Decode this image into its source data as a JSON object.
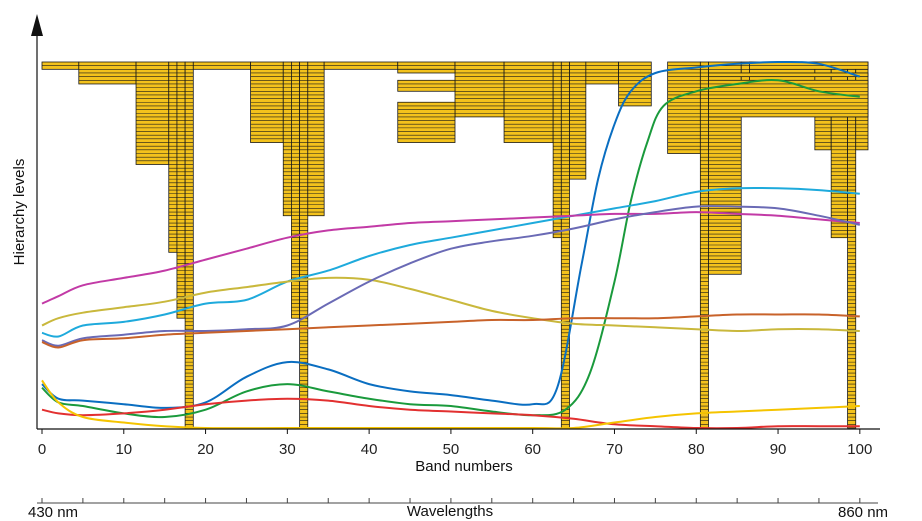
{
  "chart_data": {
    "type": "line",
    "ylabel": "Hierarchy levels",
    "xlabel": "Band numbers",
    "xlim": [
      0,
      101
    ],
    "x_ticks": [
      0,
      10,
      20,
      30,
      40,
      50,
      60,
      70,
      80,
      90,
      100
    ],
    "y_relative": [
      0,
      1
    ],
    "grid": false,
    "legend": "none",
    "wavelength_axis": {
      "label": "Wavelengths",
      "start_label": "430 nm",
      "end_label": "860 nm"
    },
    "hierarchy_levels": {
      "fill": "#f3c21c",
      "stroke": "#1a1a1a",
      "levels": 100,
      "segments": [
        {
          "x0": 0,
          "x1": 4.5,
          "depth": 2
        },
        {
          "x0": 4.5,
          "x1": 11.5,
          "depth": 6
        },
        {
          "x0": 11.5,
          "x1": 15.5,
          "depth": 28
        },
        {
          "x0": 15.5,
          "x1": 16.5,
          "depth": 52
        },
        {
          "x0": 16.5,
          "x1": 17.5,
          "depth": 70
        },
        {
          "x0": 17.5,
          "x1": 18.5,
          "depth": 100
        },
        {
          "x0": 18.5,
          "x1": 25.5,
          "depth": 2
        },
        {
          "x0": 25.5,
          "x1": 29.5,
          "depth": 22
        },
        {
          "x0": 29.5,
          "x1": 30.5,
          "depth": 42
        },
        {
          "x0": 30.5,
          "x1": 31.5,
          "depth": 70
        },
        {
          "x0": 31.5,
          "x1": 32.5,
          "depth": 100
        },
        {
          "x0": 32.5,
          "x1": 34.5,
          "depth": 42
        },
        {
          "x0": 34.5,
          "x1": 43.5,
          "depth": 2
        },
        {
          "x0": 43.5,
          "x1": 50.5,
          "depth": 2
        },
        {
          "x0": 50.5,
          "x1": 56.5,
          "depth": 15
        },
        {
          "x0": 56.5,
          "x1": 62.5,
          "depth": 22
        },
        {
          "x0": 62.5,
          "x1": 63.5,
          "depth": 48
        },
        {
          "x0": 63.5,
          "x1": 64.5,
          "depth": 100
        },
        {
          "x0": 64.5,
          "x1": 66.5,
          "depth": 32
        },
        {
          "x0": 66.5,
          "x1": 70.5,
          "depth": 6
        },
        {
          "x0": 70.5,
          "x1": 74.5,
          "depth": 12
        },
        {
          "x0": 74.5,
          "x1": 76.5,
          "depth": 0
        },
        {
          "x0": 76.5,
          "x1": 80.5,
          "depth": 25
        },
        {
          "x0": 80.5,
          "x1": 81.5,
          "depth": 100
        },
        {
          "x0": 81.5,
          "x1": 85.5,
          "depth": 58
        },
        {
          "x0": 85.5,
          "x1": 86.5,
          "depth": 8
        },
        {
          "x0": 86.5,
          "x1": 94.5,
          "depth": 8
        },
        {
          "x0": 94.5,
          "x1": 96.5,
          "depth": 24
        },
        {
          "x0": 96.5,
          "x1": 98.5,
          "depth": 48
        },
        {
          "x0": 98.5,
          "x1": 99.5,
          "depth": 100
        },
        {
          "x0": 99.5,
          "x1": 101,
          "depth": 24
        }
      ],
      "islands": [
        {
          "x0": 43.5,
          "x1": 50.5,
          "y0": 11,
          "y1": 22
        },
        {
          "x0": 43.5,
          "x1": 50.5,
          "y0": 5,
          "y1": 8
        },
        {
          "x0": 43.5,
          "x1": 50.5,
          "y0": 2,
          "y1": 3
        },
        {
          "x0": 81.5,
          "x1": 101,
          "y0": 5,
          "y1": 15
        },
        {
          "x0": 81.5,
          "x1": 101,
          "y0": 3,
          "y1": 4
        },
        {
          "x0": 86.5,
          "x1": 101,
          "y0": 0,
          "y1": 2
        }
      ]
    },
    "series": [
      {
        "color": "#0a6ec1",
        "values": [
          [
            0,
            0.88
          ],
          [
            2,
            0.92
          ],
          [
            5,
            0.925
          ],
          [
            10,
            0.935
          ],
          [
            15,
            0.945
          ],
          [
            20,
            0.93
          ],
          [
            25,
            0.86
          ],
          [
            30,
            0.82
          ],
          [
            35,
            0.84
          ],
          [
            40,
            0.88
          ],
          [
            45,
            0.9
          ],
          [
            50,
            0.91
          ],
          [
            55,
            0.925
          ],
          [
            60,
            0.935
          ],
          [
            63,
            0.89
          ],
          [
            66,
            0.55
          ],
          [
            68,
            0.32
          ],
          [
            70,
            0.17
          ],
          [
            72,
            0.08
          ],
          [
            75,
            0.03
          ],
          [
            80,
            0.015
          ],
          [
            85,
            0.005
          ],
          [
            90,
            0.0
          ],
          [
            95,
            0.005
          ],
          [
            100,
            0.04
          ]
        ]
      },
      {
        "color": "#1a9a3c",
        "values": [
          [
            0,
            0.89
          ],
          [
            2,
            0.93
          ],
          [
            5,
            0.94
          ],
          [
            10,
            0.96
          ],
          [
            15,
            0.97
          ],
          [
            20,
            0.95
          ],
          [
            25,
            0.9
          ],
          [
            30,
            0.88
          ],
          [
            35,
            0.9
          ],
          [
            40,
            0.92
          ],
          [
            45,
            0.935
          ],
          [
            50,
            0.94
          ],
          [
            55,
            0.955
          ],
          [
            60,
            0.965
          ],
          [
            64,
            0.95
          ],
          [
            67,
            0.85
          ],
          [
            70,
            0.6
          ],
          [
            72,
            0.38
          ],
          [
            74,
            0.22
          ],
          [
            76,
            0.12
          ],
          [
            80,
            0.08
          ],
          [
            85,
            0.06
          ],
          [
            90,
            0.05
          ],
          [
            95,
            0.08
          ],
          [
            100,
            0.095
          ]
        ]
      },
      {
        "color": "#1eaadc",
        "values": [
          [
            0,
            0.74
          ],
          [
            2,
            0.75
          ],
          [
            5,
            0.72
          ],
          [
            10,
            0.71
          ],
          [
            15,
            0.69
          ],
          [
            20,
            0.66
          ],
          [
            25,
            0.65
          ],
          [
            30,
            0.6
          ],
          [
            35,
            0.57
          ],
          [
            40,
            0.53
          ],
          [
            45,
            0.5
          ],
          [
            50,
            0.48
          ],
          [
            55,
            0.46
          ],
          [
            60,
            0.44
          ],
          [
            65,
            0.42
          ],
          [
            70,
            0.4
          ],
          [
            75,
            0.38
          ],
          [
            80,
            0.355
          ],
          [
            85,
            0.345
          ],
          [
            90,
            0.345
          ],
          [
            95,
            0.35
          ],
          [
            100,
            0.36
          ]
        ]
      },
      {
        "color": "#c23aa6",
        "values": [
          [
            0,
            0.66
          ],
          [
            2,
            0.64
          ],
          [
            5,
            0.61
          ],
          [
            10,
            0.59
          ],
          [
            15,
            0.57
          ],
          [
            20,
            0.54
          ],
          [
            25,
            0.51
          ],
          [
            30,
            0.48
          ],
          [
            35,
            0.46
          ],
          [
            40,
            0.45
          ],
          [
            45,
            0.44
          ],
          [
            50,
            0.435
          ],
          [
            55,
            0.43
          ],
          [
            60,
            0.425
          ],
          [
            65,
            0.42
          ],
          [
            70,
            0.415
          ],
          [
            75,
            0.415
          ],
          [
            80,
            0.41
          ],
          [
            85,
            0.415
          ],
          [
            90,
            0.42
          ],
          [
            95,
            0.43
          ],
          [
            100,
            0.44
          ]
        ]
      },
      {
        "color": "#c9b83c",
        "values": [
          [
            0,
            0.72
          ],
          [
            2,
            0.7
          ],
          [
            5,
            0.685
          ],
          [
            10,
            0.67
          ],
          [
            15,
            0.655
          ],
          [
            20,
            0.63
          ],
          [
            25,
            0.615
          ],
          [
            30,
            0.6
          ],
          [
            35,
            0.59
          ],
          [
            40,
            0.595
          ],
          [
            45,
            0.62
          ],
          [
            50,
            0.65
          ],
          [
            55,
            0.68
          ],
          [
            60,
            0.7
          ],
          [
            65,
            0.715
          ],
          [
            70,
            0.72
          ],
          [
            75,
            0.725
          ],
          [
            80,
            0.73
          ],
          [
            85,
            0.735
          ],
          [
            90,
            0.73
          ],
          [
            95,
            0.73
          ],
          [
            100,
            0.735
          ]
        ]
      },
      {
        "color": "#6a6ab5",
        "values": [
          [
            0,
            0.76
          ],
          [
            2,
            0.775
          ],
          [
            5,
            0.755
          ],
          [
            10,
            0.745
          ],
          [
            15,
            0.735
          ],
          [
            20,
            0.735
          ],
          [
            25,
            0.73
          ],
          [
            30,
            0.72
          ],
          [
            35,
            0.66
          ],
          [
            40,
            0.6
          ],
          [
            45,
            0.55
          ],
          [
            50,
            0.51
          ],
          [
            55,
            0.49
          ],
          [
            60,
            0.475
          ],
          [
            65,
            0.455
          ],
          [
            70,
            0.43
          ],
          [
            75,
            0.41
          ],
          [
            80,
            0.395
          ],
          [
            85,
            0.395
          ],
          [
            90,
            0.4
          ],
          [
            95,
            0.42
          ],
          [
            100,
            0.445
          ]
        ]
      },
      {
        "color": "#c8622a",
        "values": [
          [
            0,
            0.765
          ],
          [
            2,
            0.78
          ],
          [
            5,
            0.76
          ],
          [
            10,
            0.755
          ],
          [
            15,
            0.745
          ],
          [
            20,
            0.74
          ],
          [
            25,
            0.735
          ],
          [
            30,
            0.73
          ],
          [
            35,
            0.725
          ],
          [
            40,
            0.72
          ],
          [
            45,
            0.715
          ],
          [
            50,
            0.71
          ],
          [
            55,
            0.705
          ],
          [
            60,
            0.705
          ],
          [
            65,
            0.7
          ],
          [
            70,
            0.7
          ],
          [
            75,
            0.7
          ],
          [
            80,
            0.695
          ],
          [
            85,
            0.69
          ],
          [
            90,
            0.69
          ],
          [
            95,
            0.69
          ],
          [
            100,
            0.695
          ]
        ]
      },
      {
        "color": "#e23030",
        "values": [
          [
            0,
            0.95
          ],
          [
            2,
            0.96
          ],
          [
            5,
            0.965
          ],
          [
            10,
            0.96
          ],
          [
            15,
            0.95
          ],
          [
            20,
            0.935
          ],
          [
            25,
            0.925
          ],
          [
            30,
            0.92
          ],
          [
            35,
            0.925
          ],
          [
            40,
            0.94
          ],
          [
            45,
            0.95
          ],
          [
            50,
            0.955
          ],
          [
            55,
            0.96
          ],
          [
            60,
            0.965
          ],
          [
            65,
            0.975
          ],
          [
            70,
            0.99
          ],
          [
            75,
            0.995
          ],
          [
            80,
            1.0
          ],
          [
            85,
            1.0
          ],
          [
            90,
            0.995
          ],
          [
            95,
            0.995
          ],
          [
            100,
            0.995
          ]
        ]
      },
      {
        "color": "#f5c400",
        "values": [
          [
            0,
            0.87
          ],
          [
            2,
            0.93
          ],
          [
            5,
            0.97
          ],
          [
            10,
            0.985
          ],
          [
            15,
            0.995
          ],
          [
            20,
            1.0
          ],
          [
            30,
            1.0
          ],
          [
            40,
            1.0
          ],
          [
            50,
            1.0
          ],
          [
            60,
            1.0
          ],
          [
            65,
            1.0
          ],
          [
            70,
            0.985
          ],
          [
            75,
            0.97
          ],
          [
            80,
            0.96
          ],
          [
            85,
            0.955
          ],
          [
            90,
            0.95
          ],
          [
            95,
            0.945
          ],
          [
            100,
            0.94
          ]
        ]
      }
    ]
  }
}
